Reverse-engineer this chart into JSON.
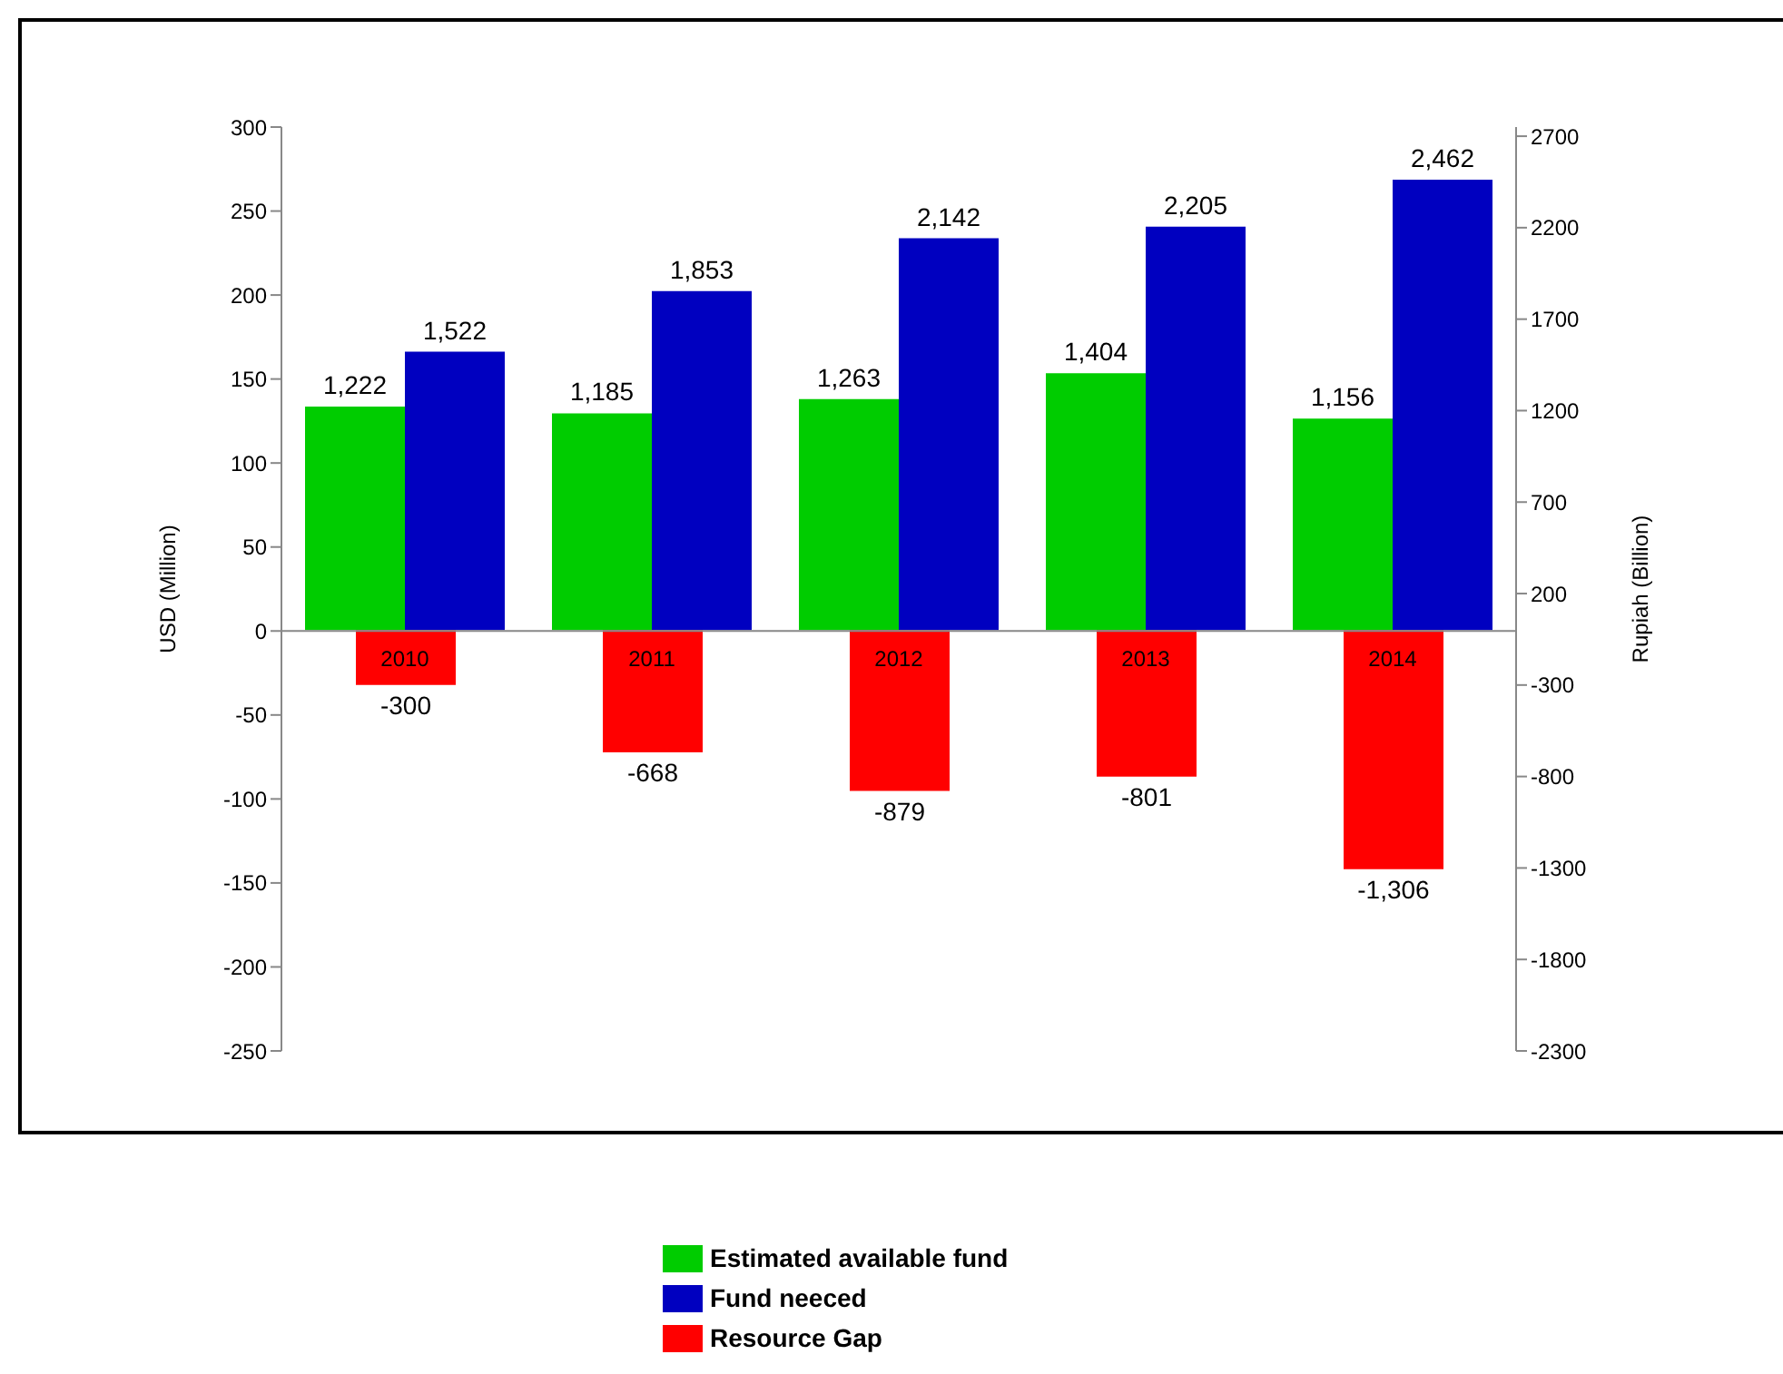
{
  "chart_data": {
    "type": "bar",
    "categories": [
      "2010",
      "2011",
      "2012",
      "2013",
      "2014"
    ],
    "ylabel": "USD (Million)",
    "y2label": "Rupiah (Billion)",
    "ylim": [
      -250,
      300
    ],
    "yticks": [
      -250,
      -200,
      -150,
      -100,
      -50,
      0,
      50,
      100,
      150,
      200,
      250,
      300
    ],
    "y2lim": [
      -2300,
      2750
    ],
    "y2ticks": [
      -2300,
      -1800,
      -1300,
      -800,
      -300,
      200,
      700,
      1200,
      1700,
      2200,
      2700
    ],
    "legend": "bottom",
    "grid": false,
    "series": [
      {
        "name": "Estimated available fund",
        "color": "#00cc00",
        "axis": "y2",
        "values": [
          1222,
          1185,
          1263,
          1404,
          1156
        ],
        "value_labels": [
          "1,222",
          "1,185",
          "1,263",
          "1,404",
          "1,156"
        ]
      },
      {
        "name": "Fund neeced",
        "color": "#0000c0",
        "axis": "y2",
        "values": [
          1522,
          1853,
          2142,
          2205,
          2462
        ],
        "value_labels": [
          "1,522",
          "1,853",
          "2,142",
          "2,205",
          "2,462"
        ]
      },
      {
        "name": "Resource Gap",
        "color": "#ff0000",
        "axis": "y2",
        "values": [
          -300,
          -668,
          -879,
          -801,
          -1306
        ],
        "value_labels": [
          "-300",
          "-668",
          "-879",
          "-801",
          "-1,306"
        ]
      }
    ]
  }
}
